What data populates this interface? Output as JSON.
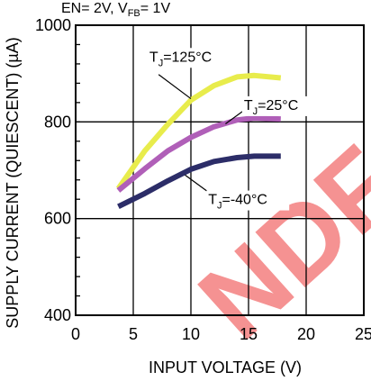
{
  "chart_data": {
    "type": "line",
    "condition": {
      "prefix": "EN= 2V, V",
      "sub": "FB",
      "suffix": "= 1V"
    },
    "xlabel": "INPUT VOLTAGE (V)",
    "ylabel": "SUPPLY CURRENT (QUIESCENT) (µA)",
    "xlim": [
      0,
      25
    ],
    "ylim": [
      400,
      1000
    ],
    "xticks": [
      0,
      5,
      10,
      15,
      20,
      25
    ],
    "yticks": [
      400,
      600,
      800,
      1000
    ],
    "grid": true,
    "watermark": "NDF",
    "series": [
      {
        "name": "TJ=125°C",
        "label": {
          "main": "T",
          "sub": "J",
          "rest": "=125°C"
        },
        "color": "#e8ec4c",
        "x": [
          3.7,
          6,
          8,
          10,
          12,
          14,
          15.5,
          17.8
        ],
        "y": [
          662,
          740,
          795,
          845,
          875,
          893,
          896,
          891
        ]
      },
      {
        "name": "TJ=25°C",
        "label": {
          "main": "T",
          "sub": "J",
          "rest": "=25°C"
        },
        "color": "#b05fb8",
        "x": [
          3.7,
          6,
          8,
          10,
          12,
          14,
          15.5,
          17.8
        ],
        "y": [
          658,
          703,
          740,
          768,
          790,
          804,
          808,
          806
        ]
      },
      {
        "name": "TJ=-40°C",
        "label": {
          "main": "T",
          "sub": "J",
          "rest": "=-40°C"
        },
        "color": "#2c2d68",
        "x": [
          3.7,
          6,
          8,
          10,
          12,
          14,
          15.5,
          17.8
        ],
        "y": [
          625,
          652,
          678,
          702,
          718,
          726,
          729,
          729
        ]
      }
    ]
  }
}
